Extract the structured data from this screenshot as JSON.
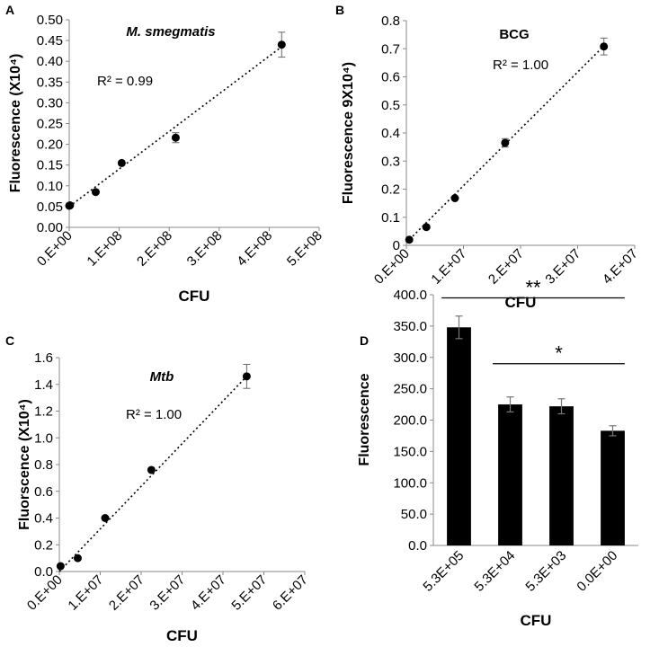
{
  "chart_data": [
    {
      "panel": "A",
      "type": "scatter",
      "title": "M. smegmatis",
      "title_style": "bold-italic",
      "xlabel": "CFU",
      "ylabel": "Fluorescence (X10⁴)",
      "xlim": [
        0,
        500000000
      ],
      "ylim": [
        0,
        0.5
      ],
      "xticks": [
        0,
        100000000,
        200000000,
        300000000,
        400000000,
        500000000
      ],
      "xtick_labels": [
        "0.E+00",
        "1.E+08",
        "2.E+08",
        "3.E+08",
        "4.E+08",
        "5.E+08"
      ],
      "yticks": [
        0,
        0.05,
        0.1,
        0.15,
        0.2,
        0.25,
        0.3,
        0.35,
        0.4,
        0.45,
        0.5
      ],
      "ytick_labels": [
        "0.00",
        "0.05",
        "0.10",
        "0.15",
        "0.20",
        "0.25",
        "0.30",
        "0.35",
        "0.40",
        "0.45",
        "0.50"
      ],
      "x": [
        0,
        1600000,
        53000000,
        105000000,
        213000000,
        425000000
      ],
      "y": [
        0.052,
        0.053,
        0.085,
        0.155,
        0.216,
        0.44
      ],
      "err": [
        0,
        0,
        0,
        0,
        0.012,
        0.03
      ],
      "trendline": [
        [
          0,
          0.05
        ],
        [
          425000000,
          0.435
        ]
      ],
      "annotation": "R² = 0.99",
      "grid": false
    },
    {
      "panel": "B",
      "type": "scatter",
      "title": "BCG",
      "title_style": "bold",
      "xlabel": "CFU",
      "ylabel": "Fluorescence 9X10⁴)",
      "xlim": [
        0,
        40000000
      ],
      "ylim": [
        0,
        0.8
      ],
      "xticks": [
        0,
        10000000,
        20000000,
        30000000,
        40000000
      ],
      "xtick_labels": [
        "0.E+00",
        "1.E+07",
        "2.E+07",
        "3.E+07",
        "4.E+07"
      ],
      "yticks": [
        0,
        0.1,
        0.2,
        0.3,
        0.4,
        0.5,
        0.6,
        0.7,
        0.8
      ],
      "ytick_labels": [
        "0",
        "0.1",
        "0.2",
        "0.3",
        "0.4",
        "0.5",
        "0.6",
        "0.7",
        "0.8"
      ],
      "x": [
        500000,
        3500000,
        8500000,
        17300000,
        34600000
      ],
      "y": [
        0.02,
        0.065,
        0.168,
        0.365,
        0.708
      ],
      "err": [
        0,
        0,
        0,
        0.015,
        0.03
      ],
      "trendline": [
        [
          0,
          0.01
        ],
        [
          34600000,
          0.71
        ]
      ],
      "annotation": "R² = 1.00",
      "grid": false
    },
    {
      "panel": "C",
      "type": "scatter",
      "title": "Mtb",
      "title_style": "bold-italic",
      "xlabel": "CFU",
      "ylabel": "Fluorscence (X10⁴)",
      "xlim": [
        0,
        60000000
      ],
      "ylim": [
        0,
        1.6
      ],
      "xticks": [
        0,
        10000000,
        20000000,
        30000000,
        40000000,
        50000000,
        60000000
      ],
      "xtick_labels": [
        "0.E+00",
        "1.E+07",
        "2.E+07",
        "3.E+07",
        "4.E+07",
        "5.E+07",
        "6.E+07"
      ],
      "yticks": [
        0,
        0.2,
        0.4,
        0.6,
        0.8,
        1.0,
        1.2,
        1.4,
        1.6
      ],
      "ytick_labels": [
        "0.0",
        "0.2",
        "0.4",
        "0.6",
        "0.8",
        "1.0",
        "1.2",
        "1.4",
        "1.6"
      ],
      "x": [
        300000,
        4500000,
        11200000,
        22500000,
        45800000
      ],
      "y": [
        0.04,
        0.1,
        0.4,
        0.76,
        1.46
      ],
      "err": [
        0,
        0,
        0,
        0,
        0.09
      ],
      "trendline": [
        [
          0,
          0.0
        ],
        [
          45800000,
          1.46
        ]
      ],
      "annotation": "R² = 1.00",
      "grid": false
    },
    {
      "panel": "D",
      "type": "bar",
      "title": "",
      "xlabel": "CFU",
      "ylabel": "Fluorescence",
      "ylim": [
        0,
        400
      ],
      "yticks": [
        0,
        50,
        100,
        150,
        200,
        250,
        300,
        350,
        400
      ],
      "ytick_labels": [
        "0.0",
        "50.0",
        "100.0",
        "150.0",
        "200.0",
        "250.0",
        "300.0",
        "350.0",
        "400.0"
      ],
      "categories": [
        "5.3E+05",
        "5.3E+04",
        "5.3E+03",
        "0.0E+00"
      ],
      "values": [
        348,
        225,
        222,
        183
      ],
      "err": [
        18,
        12,
        12,
        8
      ],
      "significance": [
        {
          "from": 0,
          "to": 3,
          "label": "**",
          "level": 395
        },
        {
          "from": 1,
          "to": 3,
          "label": "*",
          "level": 290
        }
      ],
      "bar_color": "#000000",
      "grid": false
    }
  ]
}
